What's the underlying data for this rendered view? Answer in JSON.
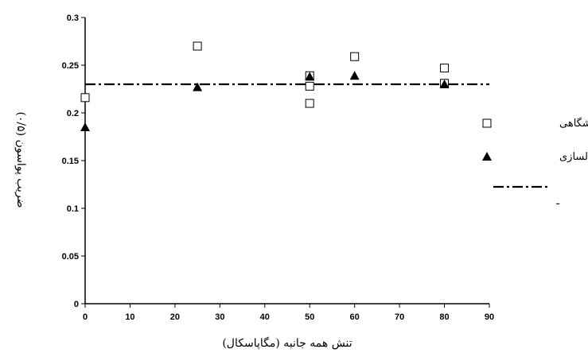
{
  "chart_data": {
    "type": "scatter",
    "title": "",
    "xlabel": "تنش همه جانبه (مگاپاسکال)",
    "ylabel": "ضریب پواسون (۰/۵)",
    "xlim": [
      0,
      90
    ],
    "ylim": [
      0,
      0.3
    ],
    "x_ticks": [
      "0",
      "10",
      "20",
      "30",
      "40",
      "50",
      "60",
      "70",
      "80",
      "90"
    ],
    "y_ticks": [
      "0",
      "0.05",
      "0.1",
      "0.15",
      "0.2",
      "0.25",
      "0.3"
    ],
    "grid": false,
    "legend_position": "right",
    "series": [
      {
        "name": "آزمایشگاهی",
        "marker": "open-square",
        "color": "#000000",
        "points": [
          [
            0,
            0.216
          ],
          [
            25,
            0.27
          ],
          [
            50,
            0.239
          ],
          [
            50,
            0.228
          ],
          [
            50,
            0.21
          ],
          [
            60,
            0.259
          ],
          [
            80,
            0.247
          ],
          [
            80,
            0.231
          ]
        ]
      },
      {
        "name": "مدلسازی",
        "marker": "filled-triangle",
        "color": "#000000",
        "points": [
          [
            0,
            0.185
          ],
          [
            25,
            0.227
          ],
          [
            50,
            0.238
          ],
          [
            60,
            0.239
          ],
          [
            80,
            0.23
          ]
        ]
      },
      {
        "name": "ـ",
        "marker": "dash-dot-line",
        "color": "#000000",
        "y_constant": 0.23
      }
    ]
  }
}
